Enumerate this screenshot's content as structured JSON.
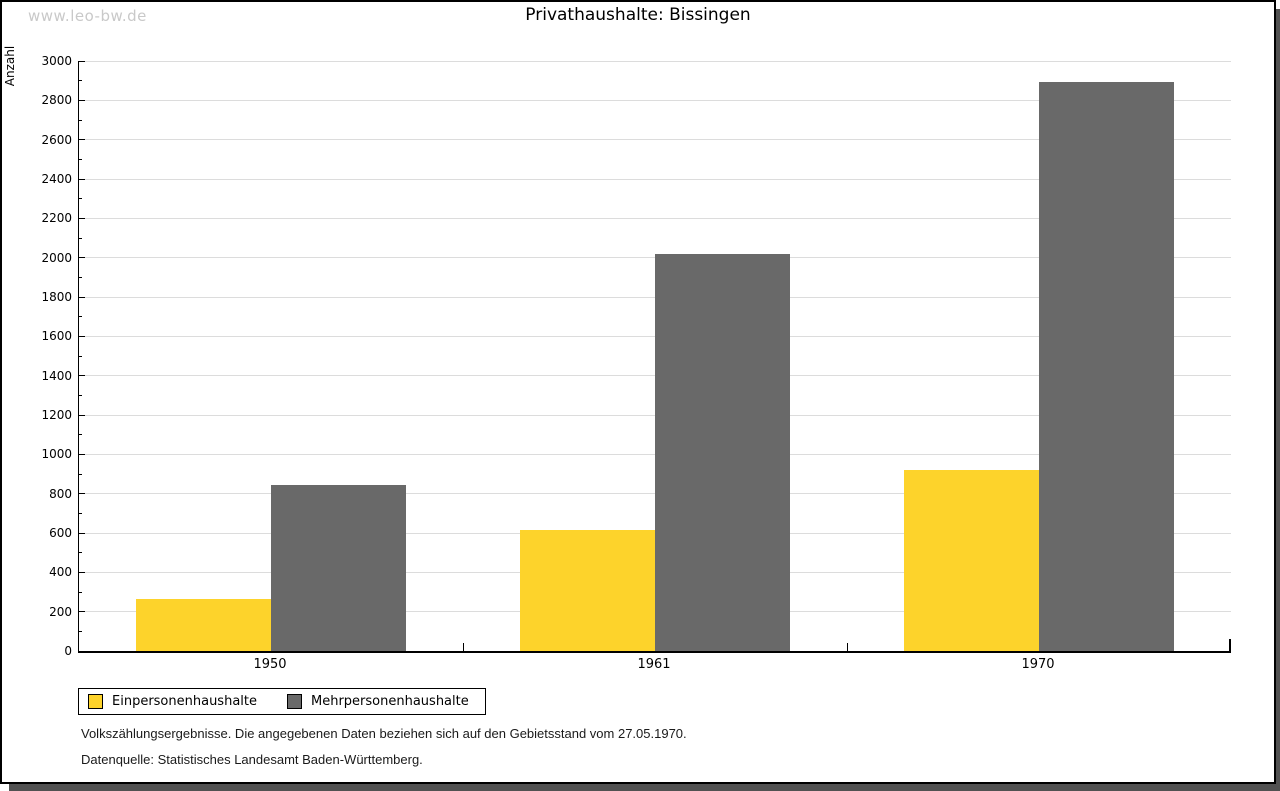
{
  "watermark": "www.leo-bw.de",
  "header": {
    "title": "Privathaushalte: Bissingen"
  },
  "chart_data": {
    "type": "bar",
    "title": "Privathaushalte: Bissingen",
    "ylabel": "Anzahl",
    "xlabel": "",
    "categories": [
      "1950",
      "1961",
      "1970"
    ],
    "series": [
      {
        "name": "Einpersonenhaushalte",
        "color": "#fdd32b",
        "values": [
          265,
          615,
          920
        ]
      },
      {
        "name": "Mehrpersonenhaushalte",
        "color": "#696969",
        "values": [
          845,
          2020,
          2895
        ]
      }
    ],
    "ylim": [
      0,
      3000
    ],
    "ytick_major": 200,
    "ytick_minor": 100,
    "grid": "horizontal-major-only",
    "legend_position": "bottom-left"
  },
  "footnotes": {
    "line1": "Volkszählungsergebnisse. Die angegebenen Daten beziehen sich auf den Gebietsstand vom 27.05.1970.",
    "line2": "Datenquelle: Statistisches Landesamt Baden-Württemberg."
  }
}
